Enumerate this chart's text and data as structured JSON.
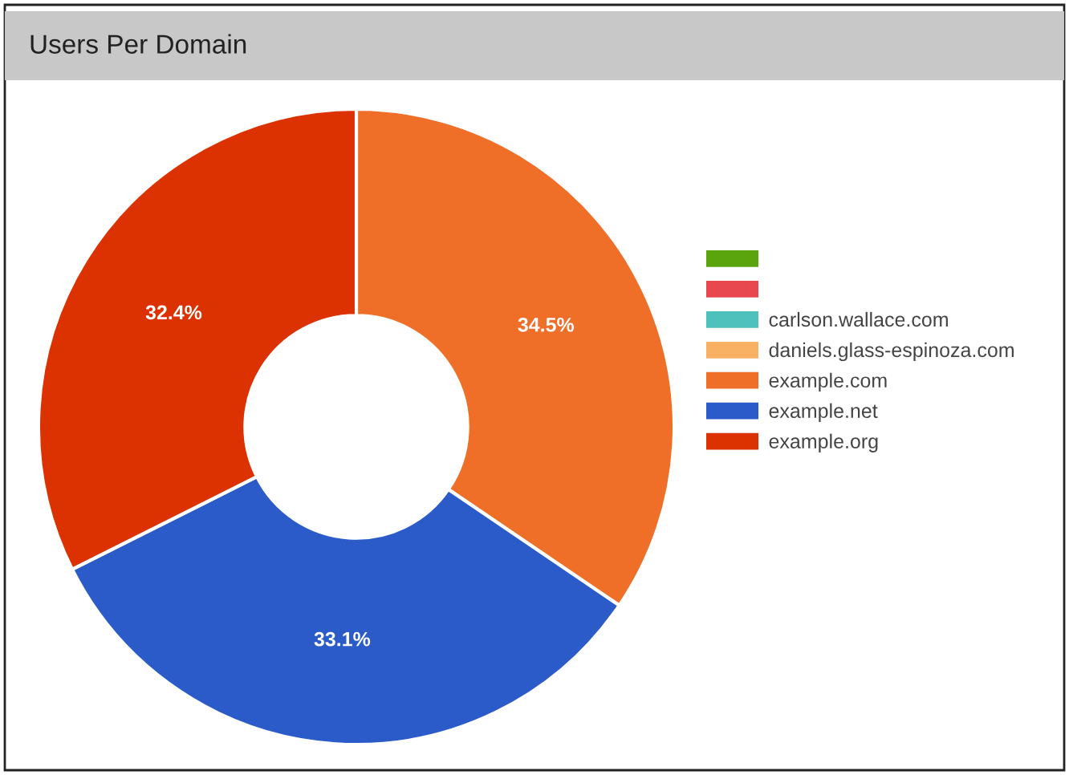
{
  "chart_data": {
    "type": "donut",
    "title": "Users Per Domain",
    "categories": [
      null,
      null,
      "carlson.wallace.com",
      "daniels.glass-espinoza.com",
      "example.com",
      "example.net",
      "example.org"
    ],
    "values": [
      0,
      0,
      0,
      0,
      34.5,
      33.1,
      32.4
    ],
    "colors": [
      "#5aa40e",
      "#e8474f",
      "#4fc1bd",
      "#f8b062",
      "#ef6f28",
      "#2b5bc8",
      "#dc3100"
    ],
    "value_labels": [
      null,
      null,
      null,
      null,
      "34.5%",
      "33.1%",
      "32.4%"
    ],
    "legend": "right"
  }
}
